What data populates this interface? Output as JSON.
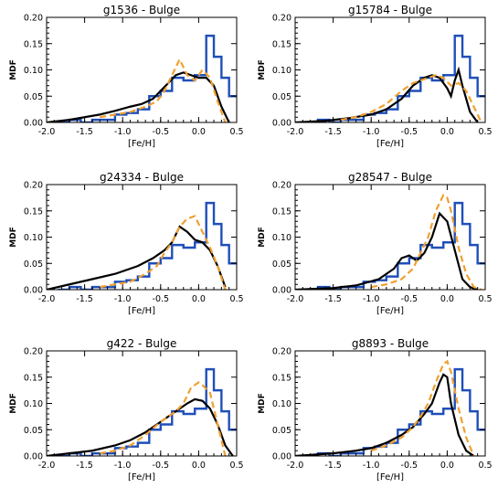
{
  "chart_data": [
    {
      "type": "line",
      "title": "g1536 - Bulge",
      "xlabel": "[Fe/H]",
      "ylabel": "MDF",
      "xlim": [
        -2.0,
        0.5
      ],
      "ylim": [
        0.0,
        0.2
      ],
      "xticks": [
        "-2.0",
        "-1.5",
        "-1.0",
        "-0.5",
        "0.0",
        "0.5"
      ],
      "yticks": [
        "0.00",
        "0.05",
        "0.10",
        "0.15",
        "0.20"
      ],
      "series": [
        {
          "kind": "histogram",
          "color": "#1f4fb8",
          "edges": [
            -1.85,
            -1.7,
            -1.55,
            -1.4,
            -1.25,
            -1.1,
            -0.95,
            -0.8,
            -0.65,
            -0.5,
            -0.35,
            -0.2,
            -0.05,
            0.1,
            0.2,
            0.3,
            0.4,
            0.5
          ],
          "values": [
            0.0,
            0.005,
            0.0,
            0.005,
            0.005,
            0.015,
            0.018,
            0.025,
            0.05,
            0.06,
            0.085,
            0.08,
            0.09,
            0.165,
            0.125,
            0.085,
            0.05
          ]
        },
        {
          "kind": "line",
          "color": "#000000",
          "x": [
            -2.0,
            -1.7,
            -1.5,
            -1.3,
            -1.1,
            -0.9,
            -0.75,
            -0.6,
            -0.5,
            -0.4,
            -0.3,
            -0.2,
            -0.1,
            0.0,
            0.1,
            0.2,
            0.3,
            0.4
          ],
          "y": [
            0.0,
            0.005,
            0.01,
            0.015,
            0.022,
            0.03,
            0.035,
            0.045,
            0.06,
            0.075,
            0.09,
            0.095,
            0.09,
            0.085,
            0.085,
            0.07,
            0.03,
            0.0
          ]
        },
        {
          "kind": "dashed",
          "color": "#f0a030",
          "x": [
            -1.3,
            -1.1,
            -0.9,
            -0.7,
            -0.55,
            -0.45,
            -0.35,
            -0.25,
            -0.15,
            -0.05,
            0.05,
            0.15,
            0.25,
            0.35
          ],
          "y": [
            0.01,
            0.015,
            0.02,
            0.03,
            0.04,
            0.06,
            0.09,
            0.12,
            0.09,
            0.08,
            0.1,
            0.085,
            0.04,
            0.0
          ]
        }
      ]
    },
    {
      "type": "line",
      "title": "g15784 - Bulge",
      "xlabel": "[Fe/H]",
      "ylabel": "MDF",
      "xlim": [
        -2.0,
        0.5
      ],
      "ylim": [
        0.0,
        0.2
      ],
      "xticks": [
        "-2.0",
        "-1.5",
        "-1.0",
        "-0.5",
        "0.0",
        "0.5"
      ],
      "yticks": [
        "0.00",
        "0.05",
        "0.10",
        "0.15",
        "0.20"
      ],
      "series": [
        {
          "kind": "histogram",
          "color": "#1f4fb8",
          "edges": [
            -1.85,
            -1.7,
            -1.55,
            -1.4,
            -1.25,
            -1.1,
            -0.95,
            -0.8,
            -0.65,
            -0.5,
            -0.35,
            -0.2,
            -0.05,
            0.1,
            0.2,
            0.3,
            0.4,
            0.5
          ],
          "values": [
            0.0,
            0.005,
            0.0,
            0.005,
            0.005,
            0.015,
            0.018,
            0.025,
            0.05,
            0.06,
            0.085,
            0.08,
            0.09,
            0.165,
            0.125,
            0.085,
            0.05
          ]
        },
        {
          "kind": "line",
          "color": "#000000",
          "x": [
            -2.0,
            -1.6,
            -1.3,
            -1.0,
            -0.8,
            -0.6,
            -0.45,
            -0.3,
            -0.2,
            -0.1,
            0.0,
            0.05,
            0.1,
            0.15,
            0.2,
            0.3,
            0.4
          ],
          "y": [
            0.0,
            0.003,
            0.008,
            0.015,
            0.025,
            0.045,
            0.07,
            0.085,
            0.09,
            0.085,
            0.065,
            0.05,
            0.08,
            0.1,
            0.07,
            0.02,
            0.0
          ]
        },
        {
          "kind": "dashed",
          "color": "#f0a030",
          "x": [
            -1.4,
            -1.2,
            -1.0,
            -0.8,
            -0.6,
            -0.45,
            -0.35,
            -0.25,
            -0.15,
            -0.05,
            0.05,
            0.15,
            0.25,
            0.35,
            0.45
          ],
          "y": [
            0.005,
            0.01,
            0.02,
            0.035,
            0.06,
            0.075,
            0.08,
            0.085,
            0.09,
            0.085,
            0.07,
            0.075,
            0.06,
            0.03,
            0.0
          ]
        }
      ]
    },
    {
      "type": "line",
      "title": "g24334 - Bulge",
      "xlabel": "[Fe/H]",
      "ylabel": "MDF",
      "xlim": [
        -2.0,
        0.5
      ],
      "ylim": [
        0.0,
        0.2
      ],
      "xticks": [
        "-2.0",
        "-1.5",
        "-1.0",
        "-0.5",
        "0.0",
        "0.5"
      ],
      "yticks": [
        "0.00",
        "0.05",
        "0.10",
        "0.15",
        "0.20"
      ],
      "series": [
        {
          "kind": "histogram",
          "color": "#1f4fb8",
          "edges": [
            -1.85,
            -1.7,
            -1.55,
            -1.4,
            -1.25,
            -1.1,
            -0.95,
            -0.8,
            -0.65,
            -0.5,
            -0.35,
            -0.2,
            -0.05,
            0.1,
            0.2,
            0.3,
            0.4,
            0.5
          ],
          "values": [
            0.0,
            0.005,
            0.0,
            0.005,
            0.005,
            0.015,
            0.018,
            0.025,
            0.05,
            0.06,
            0.085,
            0.08,
            0.09,
            0.165,
            0.125,
            0.085,
            0.05
          ]
        },
        {
          "kind": "line",
          "color": "#000000",
          "x": [
            -2.0,
            -1.7,
            -1.4,
            -1.1,
            -0.8,
            -0.6,
            -0.45,
            -0.35,
            -0.25,
            -0.15,
            -0.05,
            0.05,
            0.15,
            0.25,
            0.35
          ],
          "y": [
            0.0,
            0.01,
            0.02,
            0.03,
            0.045,
            0.06,
            0.075,
            0.09,
            0.12,
            0.11,
            0.095,
            0.09,
            0.075,
            0.045,
            0.005
          ]
        },
        {
          "kind": "dashed",
          "color": "#f0a030",
          "x": [
            -1.3,
            -1.1,
            -0.9,
            -0.7,
            -0.55,
            -0.45,
            -0.35,
            -0.25,
            -0.15,
            -0.05,
            0.05,
            0.15,
            0.25,
            0.35
          ],
          "y": [
            0.005,
            0.01,
            0.015,
            0.03,
            0.045,
            0.07,
            0.09,
            0.12,
            0.135,
            0.14,
            0.11,
            0.08,
            0.045,
            0.0
          ]
        }
      ]
    },
    {
      "type": "line",
      "title": "g28547 - Bulge",
      "xlabel": "[Fe/H]",
      "ylabel": "MDF",
      "xlim": [
        -2.0,
        0.5
      ],
      "ylim": [
        0.0,
        0.2
      ],
      "xticks": [
        "-2.0",
        "-1.5",
        "-1.0",
        "-0.5",
        "0.0",
        "0.5"
      ],
      "yticks": [
        "0.00",
        "0.05",
        "0.10",
        "0.15",
        "0.20"
      ],
      "series": [
        {
          "kind": "histogram",
          "color": "#1f4fb8",
          "edges": [
            -1.85,
            -1.7,
            -1.55,
            -1.4,
            -1.25,
            -1.1,
            -0.95,
            -0.8,
            -0.65,
            -0.5,
            -0.35,
            -0.2,
            -0.05,
            0.1,
            0.2,
            0.3,
            0.4,
            0.5
          ],
          "values": [
            0.0,
            0.005,
            0.0,
            0.005,
            0.005,
            0.015,
            0.018,
            0.025,
            0.05,
            0.06,
            0.085,
            0.08,
            0.09,
            0.165,
            0.125,
            0.085,
            0.05
          ]
        },
        {
          "kind": "line",
          "color": "#000000",
          "x": [
            -2.0,
            -1.5,
            -1.2,
            -0.9,
            -0.7,
            -0.6,
            -0.5,
            -0.4,
            -0.3,
            -0.2,
            -0.1,
            0.0,
            0.1,
            0.2,
            0.3,
            0.4
          ],
          "y": [
            0.0,
            0.003,
            0.008,
            0.02,
            0.04,
            0.06,
            0.065,
            0.055,
            0.07,
            0.1,
            0.145,
            0.13,
            0.075,
            0.02,
            0.005,
            0.0
          ]
        },
        {
          "kind": "dashed",
          "color": "#f0a030",
          "x": [
            -1.0,
            -0.8,
            -0.6,
            -0.45,
            -0.35,
            -0.25,
            -0.15,
            -0.05,
            0.0,
            0.05,
            0.15,
            0.25,
            0.35,
            0.45
          ],
          "y": [
            0.005,
            0.01,
            0.02,
            0.04,
            0.07,
            0.1,
            0.15,
            0.18,
            0.175,
            0.15,
            0.08,
            0.03,
            0.005,
            0.0
          ]
        }
      ]
    },
    {
      "type": "line",
      "title": "g422 - Bulge",
      "xlabel": "[Fe/H]",
      "ylabel": "MDF",
      "xlim": [
        -2.0,
        0.5
      ],
      "ylim": [
        0.0,
        0.2
      ],
      "xticks": [
        "-2.0",
        "-1.5",
        "-1.0",
        "-0.5",
        "0.0",
        "0.5"
      ],
      "yticks": [
        "0.00",
        "0.05",
        "0.10",
        "0.15",
        "0.20"
      ],
      "series": [
        {
          "kind": "histogram",
          "color": "#1f4fb8",
          "edges": [
            -1.85,
            -1.7,
            -1.55,
            -1.4,
            -1.25,
            -1.1,
            -0.95,
            -0.8,
            -0.65,
            -0.5,
            -0.35,
            -0.2,
            -0.05,
            0.1,
            0.2,
            0.3,
            0.4,
            0.5
          ],
          "values": [
            0.0,
            0.005,
            0.0,
            0.005,
            0.005,
            0.015,
            0.018,
            0.025,
            0.05,
            0.06,
            0.085,
            0.08,
            0.09,
            0.165,
            0.125,
            0.085,
            0.05
          ]
        },
        {
          "kind": "line",
          "color": "#000000",
          "x": [
            -2.0,
            -1.7,
            -1.4,
            -1.1,
            -0.9,
            -0.7,
            -0.5,
            -0.3,
            -0.15,
            -0.05,
            0.05,
            0.15,
            0.25,
            0.35,
            0.45
          ],
          "y": [
            0.0,
            0.005,
            0.01,
            0.02,
            0.03,
            0.045,
            0.065,
            0.085,
            0.1,
            0.108,
            0.105,
            0.09,
            0.06,
            0.02,
            0.0
          ]
        },
        {
          "kind": "dashed",
          "color": "#f0a030",
          "x": [
            -1.3,
            -1.1,
            -0.9,
            -0.7,
            -0.5,
            -0.4,
            -0.3,
            -0.2,
            -0.1,
            0.0,
            0.05,
            0.15,
            0.25,
            0.35
          ],
          "y": [
            0.005,
            0.01,
            0.02,
            0.04,
            0.065,
            0.075,
            0.085,
            0.1,
            0.13,
            0.14,
            0.135,
            0.12,
            0.06,
            0.0
          ]
        }
      ]
    },
    {
      "type": "line",
      "title": "g8893 - Bulge",
      "xlabel": "[Fe/H]",
      "ylabel": "MDF",
      "xlim": [
        -2.0,
        0.5
      ],
      "ylim": [
        0.0,
        0.2
      ],
      "xticks": [
        "-2.0",
        "-1.5",
        "-1.0",
        "-0.5",
        "0.0",
        "0.5"
      ],
      "yticks": [
        "0.00",
        "0.05",
        "0.10",
        "0.15",
        "0.20"
      ],
      "series": [
        {
          "kind": "histogram",
          "color": "#1f4fb8",
          "edges": [
            -1.85,
            -1.7,
            -1.55,
            -1.4,
            -1.25,
            -1.1,
            -0.95,
            -0.8,
            -0.65,
            -0.5,
            -0.35,
            -0.2,
            -0.05,
            0.1,
            0.2,
            0.3,
            0.4,
            0.5
          ],
          "values": [
            0.0,
            0.005,
            0.0,
            0.005,
            0.005,
            0.015,
            0.018,
            0.025,
            0.05,
            0.06,
            0.085,
            0.08,
            0.09,
            0.165,
            0.125,
            0.085,
            0.05
          ]
        },
        {
          "kind": "line",
          "color": "#000000",
          "x": [
            -2.0,
            -1.5,
            -1.2,
            -1.0,
            -0.8,
            -0.6,
            -0.45,
            -0.3,
            -0.2,
            -0.1,
            -0.05,
            0.0,
            0.05,
            0.15,
            0.25,
            0.35
          ],
          "y": [
            0.0,
            0.005,
            0.01,
            0.015,
            0.025,
            0.04,
            0.055,
            0.08,
            0.1,
            0.14,
            0.155,
            0.15,
            0.1,
            0.04,
            0.01,
            0.0
          ]
        },
        {
          "kind": "dashed",
          "color": "#f0a030",
          "x": [
            -1.0,
            -0.8,
            -0.6,
            -0.45,
            -0.35,
            -0.25,
            -0.15,
            -0.05,
            0.0,
            0.05,
            0.15,
            0.25,
            0.35
          ],
          "y": [
            0.01,
            0.02,
            0.035,
            0.055,
            0.075,
            0.1,
            0.14,
            0.175,
            0.18,
            0.16,
            0.09,
            0.035,
            0.0
          ]
        }
      ]
    }
  ]
}
